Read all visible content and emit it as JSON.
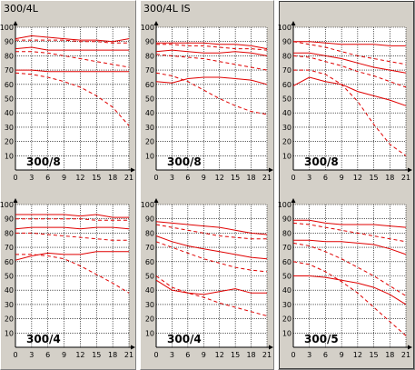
{
  "panels": [
    {
      "title": "300/4L"
    },
    {
      "title": "300/4L IS"
    },
    {
      "title": ""
    }
  ],
  "chart_data": [
    {
      "type": "line",
      "label": "300/8",
      "xlim": [
        0,
        21
      ],
      "ylim": [
        0,
        100
      ],
      "xticks": [
        0,
        3,
        6,
        9,
        12,
        15,
        18,
        21
      ],
      "yticks": [
        10,
        20,
        30,
        40,
        50,
        60,
        70,
        80,
        90,
        100
      ],
      "series": [
        {
          "style": "solid",
          "x": [
            0,
            3,
            6,
            9,
            12,
            15,
            18,
            21
          ],
          "y": [
            92,
            94,
            93,
            92,
            91,
            91,
            90,
            92
          ]
        },
        {
          "style": "dashed",
          "x": [
            0,
            3,
            6,
            9,
            12,
            15,
            18,
            21
          ],
          "y": [
            91,
            91,
            91,
            91,
            90,
            90,
            89,
            89
          ]
        },
        {
          "style": "solid",
          "x": [
            0,
            3,
            6,
            9,
            12,
            15,
            18,
            21
          ],
          "y": [
            85,
            86,
            84,
            84,
            84,
            84,
            84,
            84
          ]
        },
        {
          "style": "dashed",
          "x": [
            0,
            3,
            6,
            9,
            12,
            15,
            18,
            21
          ],
          "y": [
            83,
            83,
            82,
            80,
            78,
            76,
            74,
            72
          ]
        },
        {
          "style": "solid",
          "x": [
            0,
            3,
            6,
            9,
            12,
            15,
            18,
            21
          ],
          "y": [
            70,
            70,
            69,
            69,
            69,
            69,
            69,
            69
          ]
        },
        {
          "style": "dashed",
          "x": [
            0,
            3,
            6,
            9,
            12,
            15,
            18,
            21
          ],
          "y": [
            68,
            67,
            65,
            62,
            58,
            52,
            44,
            31
          ]
        }
      ]
    },
    {
      "type": "line",
      "label": "300/8",
      "xlim": [
        0,
        21
      ],
      "ylim": [
        0,
        100
      ],
      "xticks": [
        0,
        3,
        6,
        9,
        12,
        15,
        18,
        21
      ],
      "yticks": [
        10,
        20,
        30,
        40,
        50,
        60,
        70,
        80,
        90,
        100
      ],
      "series": [
        {
          "style": "solid",
          "x": [
            0,
            3,
            6,
            9,
            12,
            15,
            18,
            21
          ],
          "y": [
            89,
            89,
            89,
            89,
            88,
            88,
            87,
            85
          ]
        },
        {
          "style": "dashed",
          "x": [
            0,
            3,
            6,
            9,
            12,
            15,
            18,
            21
          ],
          "y": [
            88,
            88,
            87,
            87,
            86,
            85,
            85,
            84
          ]
        },
        {
          "style": "solid",
          "x": [
            0,
            3,
            6,
            9,
            12,
            15,
            18,
            21
          ],
          "y": [
            83,
            84,
            83,
            82,
            82,
            83,
            82,
            80
          ]
        },
        {
          "style": "dashed",
          "x": [
            0,
            3,
            6,
            9,
            12,
            15,
            18,
            21
          ],
          "y": [
            81,
            80,
            79,
            78,
            76,
            74,
            72,
            70
          ]
        },
        {
          "style": "solid",
          "x": [
            0,
            3,
            6,
            9,
            12,
            15,
            18,
            21
          ],
          "y": [
            62,
            61,
            64,
            65,
            65,
            64,
            63,
            60
          ]
        },
        {
          "style": "dashed",
          "x": [
            0,
            3,
            6,
            9,
            12,
            15,
            18,
            21
          ],
          "y": [
            68,
            66,
            62,
            56,
            50,
            45,
            41,
            39
          ]
        }
      ]
    },
    {
      "type": "line",
      "label": "300/8",
      "xlim": [
        0,
        21
      ],
      "ylim": [
        0,
        100
      ],
      "xticks": [
        0,
        3,
        6,
        9,
        12,
        15,
        18,
        21
      ],
      "yticks": [
        10,
        20,
        30,
        40,
        50,
        60,
        70,
        80,
        90,
        100
      ],
      "series": [
        {
          "style": "solid",
          "x": [
            0,
            3,
            6,
            9,
            12,
            15,
            18,
            21
          ],
          "y": [
            90,
            90,
            89,
            88,
            88,
            88,
            87,
            87
          ]
        },
        {
          "style": "dashed",
          "x": [
            0,
            3,
            6,
            9,
            12,
            15,
            18,
            21
          ],
          "y": [
            90,
            88,
            86,
            83,
            80,
            78,
            76,
            74
          ]
        },
        {
          "style": "solid",
          "x": [
            0,
            3,
            6,
            9,
            12,
            15,
            18,
            21
          ],
          "y": [
            82,
            82,
            80,
            78,
            75,
            72,
            70,
            68
          ]
        },
        {
          "style": "dashed",
          "x": [
            0,
            3,
            6,
            9,
            12,
            15,
            18,
            21
          ],
          "y": [
            80,
            79,
            76,
            73,
            69,
            66,
            62,
            58
          ]
        },
        {
          "style": "solid",
          "x": [
            0,
            3,
            6,
            9,
            12,
            15,
            18,
            21
          ],
          "y": [
            59,
            65,
            62,
            60,
            55,
            52,
            49,
            45
          ]
        },
        {
          "style": "dashed",
          "x": [
            0,
            3,
            6,
            9,
            12,
            15,
            18,
            21
          ],
          "y": [
            70,
            70,
            67,
            60,
            48,
            32,
            18,
            10
          ]
        }
      ]
    },
    {
      "type": "line",
      "label": "300/4",
      "xlim": [
        0,
        21
      ],
      "ylim": [
        0,
        100
      ],
      "xticks": [
        0,
        3,
        6,
        9,
        12,
        15,
        18,
        21
      ],
      "yticks": [
        10,
        20,
        30,
        40,
        50,
        60,
        70,
        80,
        90,
        100
      ],
      "series": [
        {
          "style": "solid",
          "x": [
            0,
            3,
            6,
            9,
            12,
            15,
            18,
            21
          ],
          "y": [
            93,
            93,
            93,
            93,
            92,
            93,
            91,
            91
          ]
        },
        {
          "style": "dashed",
          "x": [
            0,
            3,
            6,
            9,
            12,
            15,
            18,
            21
          ],
          "y": [
            90,
            90,
            90,
            90,
            90,
            89,
            89,
            89
          ]
        },
        {
          "style": "solid",
          "x": [
            0,
            3,
            6,
            9,
            12,
            15,
            18,
            21
          ],
          "y": [
            83,
            84,
            84,
            84,
            83,
            84,
            84,
            83
          ]
        },
        {
          "style": "dashed",
          "x": [
            0,
            3,
            6,
            9,
            12,
            15,
            18,
            21
          ],
          "y": [
            80,
            80,
            79,
            78,
            77,
            76,
            75,
            75
          ]
        },
        {
          "style": "solid",
          "x": [
            0,
            3,
            6,
            9,
            12,
            15,
            18,
            21
          ],
          "y": [
            61,
            64,
            66,
            65,
            65,
            67,
            67,
            67
          ]
        },
        {
          "style": "dashed",
          "x": [
            0,
            3,
            6,
            9,
            12,
            15,
            18,
            21
          ],
          "y": [
            65,
            65,
            64,
            62,
            57,
            51,
            45,
            38
          ]
        }
      ]
    },
    {
      "type": "line",
      "label": "300/4",
      "xlim": [
        0,
        21
      ],
      "ylim": [
        0,
        100
      ],
      "xticks": [
        0,
        3,
        6,
        9,
        12,
        15,
        18,
        21
      ],
      "yticks": [
        10,
        20,
        30,
        40,
        50,
        60,
        70,
        80,
        90,
        100
      ],
      "series": [
        {
          "style": "solid",
          "x": [
            0,
            3,
            6,
            9,
            12,
            15,
            18,
            21
          ],
          "y": [
            88,
            87,
            86,
            85,
            84,
            82,
            80,
            79
          ]
        },
        {
          "style": "dashed",
          "x": [
            0,
            3,
            6,
            9,
            12,
            15,
            18,
            21
          ],
          "y": [
            86,
            84,
            82,
            80,
            78,
            77,
            76,
            76
          ]
        },
        {
          "style": "solid",
          "x": [
            0,
            3,
            6,
            9,
            12,
            15,
            18,
            21
          ],
          "y": [
            78,
            74,
            71,
            69,
            67,
            65,
            63,
            62
          ]
        },
        {
          "style": "dashed",
          "x": [
            0,
            3,
            6,
            9,
            12,
            15,
            18,
            21
          ],
          "y": [
            74,
            70,
            66,
            62,
            59,
            56,
            54,
            53
          ]
        },
        {
          "style": "solid",
          "x": [
            0,
            3,
            6,
            9,
            12,
            15,
            18,
            21
          ],
          "y": [
            47,
            40,
            38,
            37,
            39,
            41,
            38,
            38
          ]
        },
        {
          "style": "dashed",
          "x": [
            0,
            3,
            6,
            9,
            12,
            15,
            18,
            21
          ],
          "y": [
            50,
            42,
            38,
            35,
            31,
            28,
            25,
            22
          ]
        }
      ]
    },
    {
      "type": "line",
      "label": "300/5",
      "xlim": [
        0,
        21
      ],
      "ylim": [
        0,
        100
      ],
      "xticks": [
        0,
        3,
        6,
        9,
        12,
        15,
        18,
        21
      ],
      "yticks": [
        10,
        20,
        30,
        40,
        50,
        60,
        70,
        80,
        90,
        100
      ],
      "series": [
        {
          "style": "solid",
          "x": [
            0,
            3,
            6,
            9,
            12,
            15,
            18,
            21
          ],
          "y": [
            89,
            89,
            87,
            86,
            86,
            86,
            85,
            84
          ]
        },
        {
          "style": "dashed",
          "x": [
            0,
            3,
            6,
            9,
            12,
            15,
            18,
            21
          ],
          "y": [
            87,
            86,
            84,
            82,
            80,
            78,
            76,
            74
          ]
        },
        {
          "style": "solid",
          "x": [
            0,
            3,
            6,
            9,
            12,
            15,
            18,
            21
          ],
          "y": [
            75,
            75,
            74,
            74,
            73,
            72,
            69,
            65
          ]
        },
        {
          "style": "dashed",
          "x": [
            0,
            3,
            6,
            9,
            12,
            15,
            18,
            21
          ],
          "y": [
            73,
            71,
            67,
            62,
            56,
            50,
            43,
            36
          ]
        },
        {
          "style": "solid",
          "x": [
            0,
            3,
            6,
            9,
            12,
            15,
            18,
            21
          ],
          "y": [
            50,
            50,
            49,
            47,
            45,
            42,
            37,
            30
          ]
        },
        {
          "style": "dashed",
          "x": [
            0,
            3,
            6,
            9,
            12,
            15,
            18,
            21
          ],
          "y": [
            60,
            58,
            53,
            46,
            38,
            28,
            18,
            8
          ]
        }
      ]
    }
  ],
  "colors": {
    "line": "#e00000",
    "grid": "#000000",
    "background": "#ffffff",
    "panel": "#d4d0c8"
  }
}
